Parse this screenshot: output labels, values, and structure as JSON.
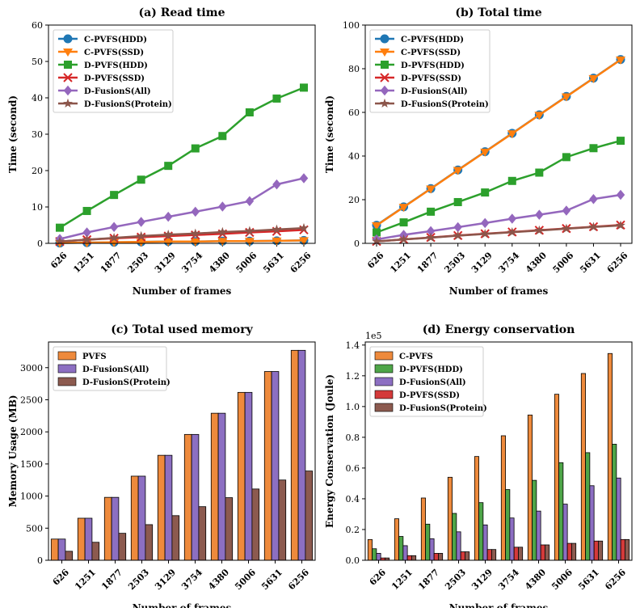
{
  "chart_data": [
    {
      "id": "read",
      "type": "line",
      "title": "(a) Read time",
      "xlabel": "Number of frames",
      "ylabel": "Time (second)",
      "categories": [
        "626",
        "1251",
        "1877",
        "2503",
        "3129",
        "3754",
        "4380",
        "5006",
        "5631",
        "6256"
      ],
      "ylim": [
        0,
        60
      ],
      "yticks": [
        0,
        10,
        20,
        30,
        40,
        50,
        60
      ],
      "legend_position": "top-left",
      "series": [
        {
          "name": "C-PVFS(HDD)",
          "color": "#1f77b4",
          "marker": "circle",
          "values": [
            0.1,
            0.2,
            0.3,
            0.4,
            0.5,
            0.5,
            0.6,
            0.6,
            0.7,
            0.8
          ]
        },
        {
          "name": "C-PVFS(SSD)",
          "color": "#ff7f0e",
          "marker": "triangle-down",
          "values": [
            0.1,
            0.2,
            0.3,
            0.4,
            0.5,
            0.5,
            0.6,
            0.6,
            0.7,
            0.8
          ]
        },
        {
          "name": "D-PVFS(HDD)",
          "color": "#2ca02c",
          "marker": "square",
          "values": [
            4.3,
            8.9,
            13.3,
            17.5,
            21.3,
            26.1,
            29.5,
            36.0,
            39.8,
            42.8
          ]
        },
        {
          "name": "D-PVFS(SSD)",
          "color": "#d62728",
          "marker": "x",
          "values": [
            0.5,
            1.0,
            1.4,
            1.7,
            2.0,
            2.3,
            2.6,
            3.0,
            3.3,
            3.7
          ]
        },
        {
          "name": "D-FusionS(All)",
          "color": "#9467bd",
          "marker": "diamond",
          "values": [
            1.2,
            3.0,
            4.5,
            5.9,
            7.3,
            8.7,
            10.1,
            11.6,
            16.2,
            17.9
          ]
        },
        {
          "name": "D-FusionS(Protein)",
          "color": "#8c564b",
          "marker": "star",
          "values": [
            0.5,
            1.0,
            1.5,
            2.0,
            2.4,
            2.7,
            3.1,
            3.4,
            3.8,
            4.2
          ]
        }
      ]
    },
    {
      "id": "total",
      "type": "line",
      "title": "(b) Total time",
      "xlabel": "Number of frames",
      "ylabel": "Time (second)",
      "categories": [
        "626",
        "1251",
        "1877",
        "2503",
        "3129",
        "3754",
        "4380",
        "5006",
        "5631",
        "6256"
      ],
      "ylim": [
        0,
        100
      ],
      "yticks": [
        0,
        20,
        40,
        60,
        80,
        100
      ],
      "legend_position": "top-left",
      "series": [
        {
          "name": "C-PVFS(HDD)",
          "color": "#1f77b4",
          "marker": "circle",
          "values": [
            8.3,
            16.7,
            25.1,
            33.6,
            42.0,
            50.4,
            58.9,
            67.3,
            75.7,
            84.2
          ]
        },
        {
          "name": "C-PVFS(SSD)",
          "color": "#ff7f0e",
          "marker": "triangle-down",
          "values": [
            8.2,
            16.6,
            25.0,
            33.5,
            41.9,
            50.3,
            58.8,
            67.2,
            75.6,
            84.1
          ]
        },
        {
          "name": "D-PVFS(HDD)",
          "color": "#2ca02c",
          "marker": "square",
          "values": [
            5.0,
            9.6,
            14.5,
            18.9,
            23.3,
            28.6,
            32.4,
            39.5,
            43.6,
            47.0
          ]
        },
        {
          "name": "D-PVFS(SSD)",
          "color": "#d62728",
          "marker": "x",
          "values": [
            0.9,
            1.8,
            2.7,
            3.6,
            4.4,
            5.2,
            6.0,
            6.8,
            7.6,
            8.4
          ]
        },
        {
          "name": "D-FusionS(All)",
          "color": "#9467bd",
          "marker": "diamond",
          "values": [
            1.8,
            3.9,
            5.6,
            7.4,
            9.3,
            11.3,
            13.1,
            15.0,
            20.3,
            22.2
          ]
        },
        {
          "name": "D-FusionS(Protein)",
          "color": "#8c564b",
          "marker": "star",
          "values": [
            0.9,
            1.8,
            2.6,
            3.5,
            4.3,
            5.1,
            5.9,
            6.7,
            7.5,
            8.2
          ]
        }
      ]
    },
    {
      "id": "memory",
      "type": "bar",
      "title": "(c) Total used memory",
      "xlabel": "Number of frames",
      "ylabel": "Memory Usage (MB)",
      "categories": [
        "626",
        "1251",
        "1877",
        "2503",
        "3129",
        "3754",
        "4380",
        "5006",
        "5631",
        "6256"
      ],
      "ylim": [
        0,
        3400
      ],
      "yticks": [
        0,
        500,
        1000,
        1500,
        2000,
        2500,
        3000
      ],
      "legend_position": "top-left",
      "series": [
        {
          "name": "PVFS",
          "color": "#ee8a3c",
          "values": [
            330,
            655,
            980,
            1310,
            1635,
            1960,
            2290,
            2615,
            2940,
            3270
          ]
        },
        {
          "name": "D-FusionS(All)",
          "color": "#8c6fc2",
          "values": [
            330,
            655,
            980,
            1310,
            1635,
            1960,
            2290,
            2615,
            2940,
            3270
          ]
        },
        {
          "name": "D-FusionS(Protein)",
          "color": "#8c5a4f",
          "values": [
            140,
            280,
            420,
            555,
            695,
            835,
            975,
            1110,
            1250,
            1390
          ]
        }
      ]
    },
    {
      "id": "energy",
      "type": "bar",
      "title": "(d) Energy conservation",
      "xlabel": "Number of frames",
      "ylabel": "Energy Conservation (Joule)",
      "y_offset_label": "1e5",
      "categories": [
        "626",
        "1251",
        "1877",
        "2503",
        "3129",
        "3754",
        "4380",
        "5006",
        "5631",
        "6256"
      ],
      "ylim": [
        0,
        1.42
      ],
      "yticks": [
        0.0,
        0.2,
        0.4,
        0.6,
        0.8,
        1.0,
        1.2,
        1.4
      ],
      "legend_position": "top-left",
      "series": [
        {
          "name": "C-PVFS",
          "color": "#ee8a3c",
          "values": [
            0.135,
            0.27,
            0.405,
            0.54,
            0.675,
            0.81,
            0.945,
            1.08,
            1.215,
            1.345
          ]
        },
        {
          "name": "D-PVFS(HDD)",
          "color": "#4ea548",
          "values": [
            0.075,
            0.155,
            0.235,
            0.305,
            0.375,
            0.46,
            0.52,
            0.635,
            0.7,
            0.755
          ]
        },
        {
          "name": "D-FusionS(All)",
          "color": "#8c6fc2",
          "values": [
            0.045,
            0.095,
            0.14,
            0.185,
            0.23,
            0.275,
            0.32,
            0.365,
            0.485,
            0.535
          ]
        },
        {
          "name": "D-PVFS(SSD)",
          "color": "#d43a3a",
          "values": [
            0.015,
            0.03,
            0.045,
            0.055,
            0.07,
            0.085,
            0.1,
            0.11,
            0.125,
            0.135
          ]
        },
        {
          "name": "D-FusionS(Protein)",
          "color": "#8c5a4f",
          "values": [
            0.015,
            0.03,
            0.045,
            0.055,
            0.07,
            0.085,
            0.1,
            0.11,
            0.125,
            0.135
          ]
        }
      ]
    }
  ]
}
